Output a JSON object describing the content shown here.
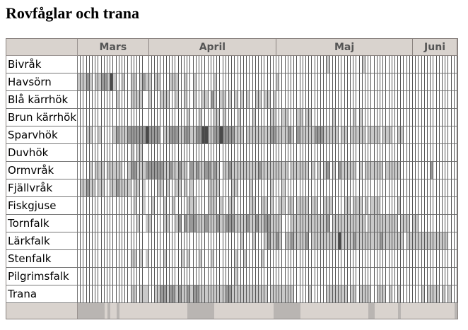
{
  "title": "Rovfåglar och trana",
  "months": [
    {
      "label": "Mars",
      "days": 24
    },
    {
      "label": "April",
      "days": 43
    },
    {
      "label": "Maj",
      "days": 46
    },
    {
      "label": "Juni",
      "days": 15
    }
  ],
  "rows": [
    {
      "label": "Bivråk",
      "levels": "000000000000000000000000000000000000000000000000000000000000000000000000000000000000100000000000100000000000000000000000000000000000"
    },
    {
      "label": "Havsörn",
      "levels": "111210112213100100110121101100011100100100000010000000000000000000010000000000000000000000000000000000000000000000000000000000000000"
    },
    {
      "label": "Blå kärrhök",
      "levels": "000000000000010000111100100011100100100100110210110101010100110110100000000000000000000000000000000000000000000000000000000000000000"
    },
    {
      "label": "Brun kärrhök",
      "levels": "000000000000000000000000000000000000010001000011010000100001000001100110001101100000001000000101000000000000000000000000000000000000"
    },
    {
      "label": "Sparvhök",
      "levels": "000110010000121112222223222201122211221122331122322221110111111112211112102111112221111101101111101111011100110000000000000000000000"
    },
    {
      "label": "Duvhök",
      "levels": "000000000000000000101100000000000000000000000000000000000000000000000000000000000000000000000000000000000000000000000000000000000000"
    },
    {
      "label": "Ormvråk",
      "levels": "000010111011111001221112222221121121102121122121011211111111121111111110111111010101201021111101011111101111100000000002000000000000"
    },
    {
      "label": "Fjällvråk",
      "levels": "011211011001121111011010000110100110101000001111000011000010000001000100000000000000000000000000000000000000000000000000000000000000"
    },
    {
      "label": "Fiskgjuse",
      "levels": "000000000000000000010010010001001000011100001110100110000011001101001101101111011001110000110111010111000000100000000000000000000000"
    },
    {
      "label": "Tornfalk",
      "levels": "000000000000000000001001100001100120212211121112112221111211211221111000111111111111201111111111101111111111011101100000000000000000"
    },
    {
      "label": "Lärkfalk",
      "levels": "000000000000000000000000000000000000000000000000000000010001000121121011211112011111111131111211111111211111110111111111111110000000"
    },
    {
      "label": "Stenfalk",
      "levels": "000000000000000000110101000001000001010001000100000001001000001000000000000000000000000000000000000000000000000000000000000000000000"
    },
    {
      "label": "Pilgrimsfalk",
      "levels": "000000000000000000000000000000000000000000000000000001000000000000000000000000000000000000000000000000000000000000000000000000000000"
    },
    {
      "label": "Trana",
      "levels": "000000000000000000110111001122122121121221111111112211111111111101111111100000100000111111101101111001110100100000001011110101000000"
    }
  ],
  "footer_levels": "111111111010010000000000000000000000011111111100000000000000000000111111111000000000000000000000001100000000100000000000000000011110",
  "level_colors": [
    "#ffffff",
    "#c9c9c9",
    "#9a9a9a",
    "#4a4a4a"
  ]
}
